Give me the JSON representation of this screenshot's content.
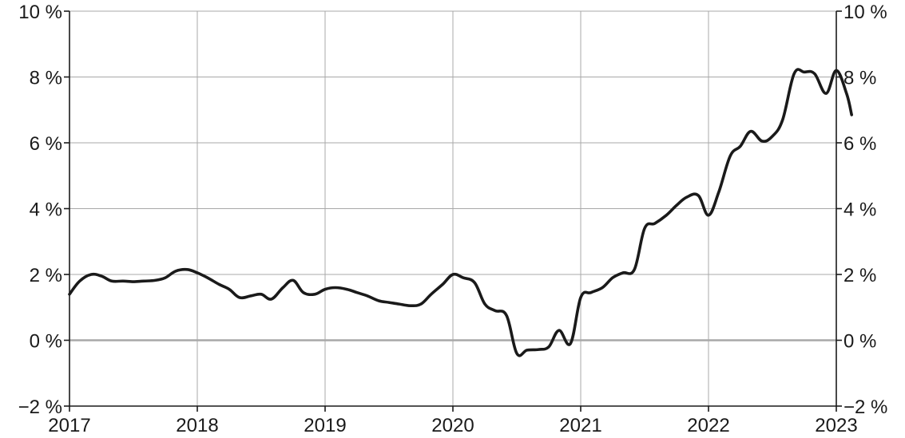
{
  "chart_data": {
    "type": "line",
    "title": "",
    "xlabel": "",
    "ylabel": "",
    "x_axis": {
      "type": "time",
      "range": [
        2017,
        2023
      ],
      "tick_labels": [
        "2017",
        "2018",
        "2019",
        "2020",
        "2021",
        "2022",
        "2023"
      ]
    },
    "y_axis": {
      "range": [
        -2,
        10
      ],
      "unit": "%",
      "tick_labels": [
        "−2 %",
        "0 %",
        "2 %",
        "4 %",
        "6 %",
        "8 %",
        "10 %"
      ],
      "mirrored_right": true
    },
    "grid": true,
    "zero_line": true,
    "line_color": "#1a1a1a",
    "grid_color": "#a8a8a8",
    "series": [
      {
        "points": [
          [
            2017.0,
            1.4
          ],
          [
            2017.08,
            1.8
          ],
          [
            2017.17,
            2.0
          ],
          [
            2017.25,
            1.95
          ],
          [
            2017.33,
            1.8
          ],
          [
            2017.42,
            1.8
          ],
          [
            2017.5,
            1.78
          ],
          [
            2017.58,
            1.8
          ],
          [
            2017.67,
            1.82
          ],
          [
            2017.75,
            1.9
          ],
          [
            2017.83,
            2.1
          ],
          [
            2017.92,
            2.15
          ],
          [
            2018.0,
            2.05
          ],
          [
            2018.08,
            1.9
          ],
          [
            2018.17,
            1.7
          ],
          [
            2018.25,
            1.55
          ],
          [
            2018.33,
            1.3
          ],
          [
            2018.42,
            1.35
          ],
          [
            2018.5,
            1.4
          ],
          [
            2018.58,
            1.25
          ],
          [
            2018.67,
            1.6
          ],
          [
            2018.75,
            1.82
          ],
          [
            2018.83,
            1.45
          ],
          [
            2018.92,
            1.4
          ],
          [
            2019.0,
            1.55
          ],
          [
            2019.08,
            1.6
          ],
          [
            2019.17,
            1.55
          ],
          [
            2019.25,
            1.45
          ],
          [
            2019.33,
            1.35
          ],
          [
            2019.42,
            1.2
          ],
          [
            2019.5,
            1.15
          ],
          [
            2019.58,
            1.1
          ],
          [
            2019.67,
            1.05
          ],
          [
            2019.75,
            1.1
          ],
          [
            2019.83,
            1.4
          ],
          [
            2019.92,
            1.7
          ],
          [
            2020.0,
            2.0
          ],
          [
            2020.08,
            1.9
          ],
          [
            2020.17,
            1.75
          ],
          [
            2020.25,
            1.1
          ],
          [
            2020.33,
            0.9
          ],
          [
            2020.42,
            0.75
          ],
          [
            2020.5,
            -0.4
          ],
          [
            2020.58,
            -0.3
          ],
          [
            2020.67,
            -0.28
          ],
          [
            2020.75,
            -0.2
          ],
          [
            2020.83,
            0.3
          ],
          [
            2020.92,
            -0.1
          ],
          [
            2021.0,
            1.3
          ],
          [
            2021.08,
            1.45
          ],
          [
            2021.17,
            1.6
          ],
          [
            2021.25,
            1.9
          ],
          [
            2021.33,
            2.05
          ],
          [
            2021.42,
            2.15
          ],
          [
            2021.5,
            3.4
          ],
          [
            2021.58,
            3.55
          ],
          [
            2021.67,
            3.8
          ],
          [
            2021.75,
            4.1
          ],
          [
            2021.83,
            4.35
          ],
          [
            2021.92,
            4.4
          ],
          [
            2022.0,
            3.8
          ],
          [
            2022.08,
            4.5
          ],
          [
            2022.17,
            5.6
          ],
          [
            2022.25,
            5.9
          ],
          [
            2022.33,
            6.35
          ],
          [
            2022.42,
            6.05
          ],
          [
            2022.5,
            6.2
          ],
          [
            2022.58,
            6.7
          ],
          [
            2022.67,
            8.1
          ],
          [
            2022.75,
            8.15
          ],
          [
            2022.83,
            8.1
          ],
          [
            2022.92,
            7.5
          ],
          [
            2023.0,
            8.2
          ],
          [
            2023.08,
            7.5
          ],
          [
            2023.12,
            6.85
          ]
        ]
      }
    ]
  }
}
